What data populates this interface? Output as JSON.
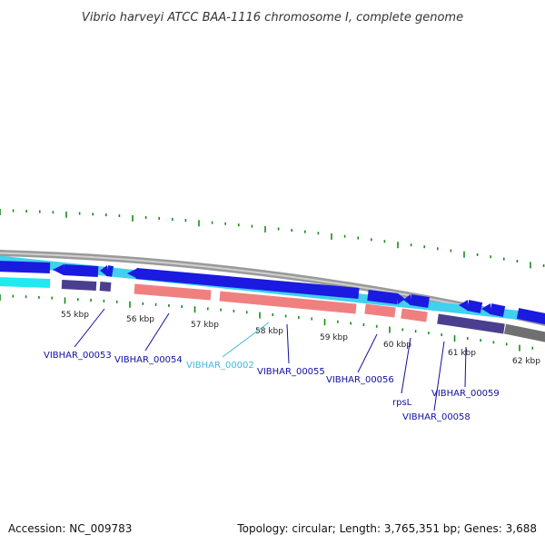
{
  "title": "Vibrio harveyi ATCC BAA-1116 chromosome I, complete genome",
  "footer": {
    "accession": "Accession: NC_009783",
    "summary": "Topology: circular; Length: 3,765,351 bp; Genes: 3,688"
  },
  "scale_labels": [
    "55 kbp",
    "56 kbp",
    "57 kbp",
    "58 kbp",
    "59 kbp",
    "60 kbp",
    "61 kbp",
    "62 kbp"
  ],
  "gene_labels": [
    {
      "id": "VIBHAR_00053",
      "text": "VIBHAR_00053",
      "color": "#1010a0"
    },
    {
      "id": "VIBHAR_00054",
      "text": "VIBHAR_00054",
      "color": "#1010a0"
    },
    {
      "id": "VIBHAR_00002",
      "text": "VIBHAR_00002",
      "color": "#40b8e0"
    },
    {
      "id": "VIBHAR_00055",
      "text": "VIBHAR_00055",
      "color": "#1010a0"
    },
    {
      "id": "VIBHAR_00056",
      "text": "VIBHAR_00056",
      "color": "#1010a0"
    },
    {
      "id": "rpsL",
      "text": "rpsL",
      "color": "#1010a0"
    },
    {
      "id": "VIBHAR_00059",
      "text": "VIBHAR_00059",
      "color": "#1010a0"
    },
    {
      "id": "VIBHAR_00058",
      "text": "VIBHAR_00058",
      "color": "#1010a0"
    }
  ],
  "colors": {
    "backbone": "#8a8a8a",
    "cds_dark": "#1a1ae0",
    "cds_light": "#40d0f0",
    "rrna_cyan": "#22e8f0",
    "trna_purple": "#4a3f8f",
    "rna_pink": "#f08080",
    "tick": "#1a8a1a"
  }
}
